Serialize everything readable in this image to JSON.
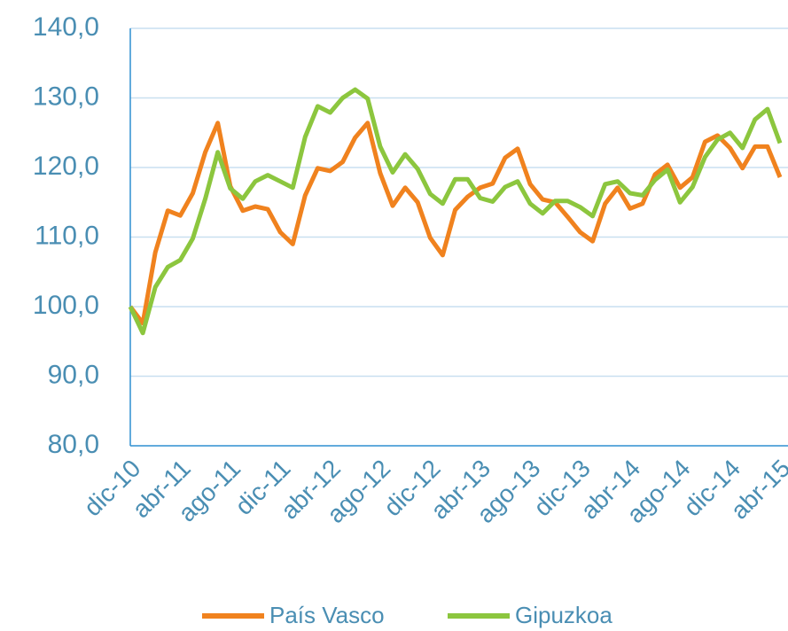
{
  "chart_data": {
    "type": "line",
    "categories": [
      "dic-10",
      null,
      null,
      null,
      "abr-11",
      null,
      null,
      null,
      "ago-11",
      null,
      null,
      null,
      "dic-11",
      null,
      null,
      null,
      "abr-12",
      null,
      null,
      null,
      "ago-12",
      null,
      null,
      null,
      "dic-12",
      null,
      null,
      null,
      "abr-13",
      null,
      null,
      null,
      "ago-13",
      null,
      null,
      null,
      "dic-13",
      null,
      null,
      null,
      "abr-14",
      null,
      null,
      null,
      "ago-14",
      null,
      null,
      null,
      "dic-14",
      null,
      null,
      null,
      "abr-15"
    ],
    "series": [
      {
        "name": "País Vasco",
        "color": "#f0821e",
        "values": [
          100,
          97.6,
          107.8,
          113.8,
          113.1,
          116.3,
          122.2,
          126.4,
          117.3,
          113.8,
          114.4,
          114.0,
          110.7,
          109.0,
          116.0,
          119.9,
          119.5,
          120.8,
          124.3,
          126.4,
          119.2,
          114.5,
          117.1,
          115.0,
          109.9,
          107.4,
          113.9,
          115.8,
          117.1,
          117.7,
          121.4,
          122.7,
          117.6,
          115.4,
          115.0,
          112.9,
          110.7,
          109.4,
          114.8,
          117.1,
          114.1,
          114.8,
          119.0,
          120.4,
          117.1,
          118.6,
          123.7,
          124.6,
          122.8,
          119.9,
          123.0,
          123.0,
          118.6
        ]
      },
      {
        "name": "Gipuzkoa",
        "color": "#8cc63e",
        "values": [
          100,
          96.2,
          102.8,
          105.7,
          106.7,
          109.8,
          115.5,
          122.2,
          117.0,
          115.5,
          118.0,
          118.9,
          118.0,
          117.1,
          124.4,
          128.8,
          127.9,
          130.0,
          131.2,
          129.9,
          123.0,
          119.3,
          121.9,
          119.8,
          116.2,
          114.8,
          118.3,
          118.3,
          115.6,
          115.1,
          117.2,
          118.0,
          114.8,
          113.4,
          115.2,
          115.2,
          114.3,
          113.0,
          117.6,
          118.0,
          116.3,
          116.0,
          118.2,
          119.7,
          115.0,
          117.2,
          121.5,
          124.0,
          125.0,
          122.8,
          126.9,
          128.4,
          123.5
        ]
      }
    ],
    "ylim": [
      80,
      140
    ],
    "yticks": [
      {
        "value": 80,
        "label": "80,0"
      },
      {
        "value": 90,
        "label": "90,0"
      },
      {
        "value": 100,
        "label": "100,0"
      },
      {
        "value": 110,
        "label": "110,0"
      },
      {
        "value": 120,
        "label": "120,0"
      },
      {
        "value": 130,
        "label": "130,0"
      },
      {
        "value": 140,
        "label": "140,0"
      }
    ],
    "grid": true,
    "legend": "bottom"
  }
}
